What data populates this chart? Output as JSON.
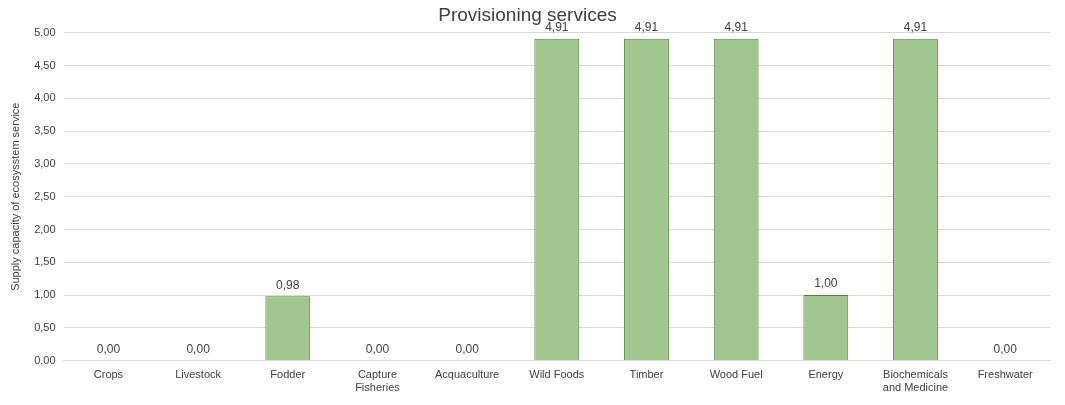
{
  "chart_data": {
    "type": "bar",
    "title": "Provisioning services",
    "ylabel": "Supply capacity of ecosysstem service",
    "categories": [
      "Crops",
      "Livestock",
      "Fodder",
      "Capture Fisheries",
      "Acquaculture",
      "Wild Foods",
      "Timber",
      "Wood Fuel",
      "Energy",
      "Biochemicals and Medicine",
      "Freshwater"
    ],
    "values": [
      0,
      0,
      0.98,
      0,
      0,
      4.91,
      4.91,
      4.91,
      1,
      4.91,
      0
    ],
    "value_labels": [
      "0,00",
      "0,00",
      "0,98",
      "0,00",
      "0,00",
      "4,91",
      "4,91",
      "4,91",
      "1,00",
      "4,91",
      "0,00"
    ],
    "color": "#a2c68f",
    "ylim": [
      0,
      5
    ],
    "yticks": [
      {
        "value": 0,
        "label": "0,00"
      },
      {
        "value": 0.5,
        "label": "0,50"
      },
      {
        "value": 1,
        "label": "1,00"
      },
      {
        "value": 1.5,
        "label": "1,50"
      },
      {
        "value": 2,
        "label": "2,00"
      },
      {
        "value": 2.5,
        "label": "2,50"
      },
      {
        "value": 3,
        "label": "3,00"
      },
      {
        "value": 3.5,
        "label": "3,50"
      },
      {
        "value": 4,
        "label": "4,00"
      },
      {
        "value": 4.5,
        "label": "4,50"
      },
      {
        "value": 5,
        "label": "5,00"
      }
    ],
    "grid": "y",
    "legend": false
  }
}
